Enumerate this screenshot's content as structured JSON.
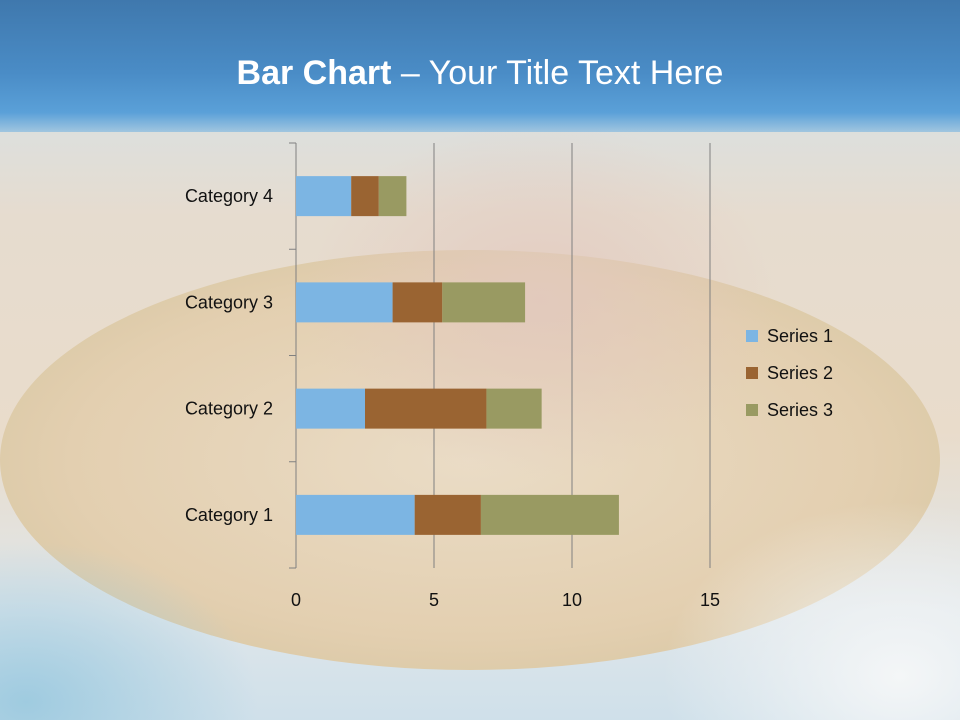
{
  "slide": {
    "title_bold": "Bar Chart",
    "title_dash": " – ",
    "title_rest": "Your Title Text Here"
  },
  "chart_data": {
    "type": "bar",
    "orientation": "horizontal",
    "stacked": true,
    "categories": [
      "Category 1",
      "Category 2",
      "Category 3",
      "Category 4"
    ],
    "series": [
      {
        "name": "Series 1",
        "values": [
          4.3,
          2.5,
          3.5,
          2
        ],
        "color": "#7cb5e3"
      },
      {
        "name": "Series 2",
        "values": [
          2.4,
          4.4,
          1.8,
          1
        ],
        "color": "#9a6432"
      },
      {
        "name": "Series 3",
        "values": [
          5,
          2,
          3,
          1
        ],
        "color": "#999a62"
      }
    ],
    "xlim": [
      0,
      15
    ],
    "xticks": [
      0,
      5,
      10,
      15
    ],
    "grid": true,
    "legend": "right"
  }
}
